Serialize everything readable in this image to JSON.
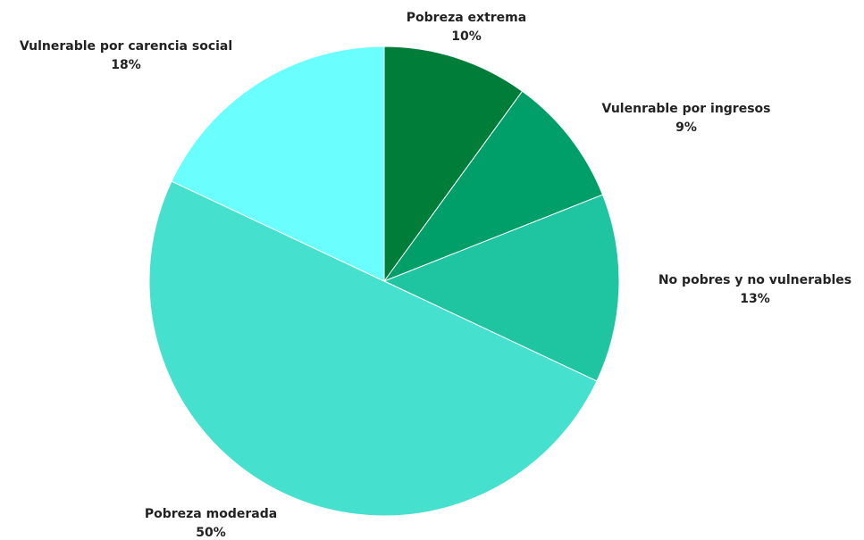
{
  "chart_data": {
    "type": "pie",
    "slices": [
      {
        "label": "Pobreza extrema",
        "value": 10,
        "value_label": "10%",
        "color": "#007E39"
      },
      {
        "label": "Vulenrable por ingresos",
        "value": 9,
        "value_label": "9%",
        "color": "#009E68"
      },
      {
        "label": "No pobres y no vulnerables",
        "value": 13,
        "value_label": "13%",
        "color": "#1FC4A0"
      },
      {
        "label": "Pobreza moderada",
        "value": 50,
        "value_label": "50%",
        "color": "#45E1CE"
      },
      {
        "label": "Vulnerable por carencia social",
        "value": 18,
        "value_label": "18%",
        "color": "#6BFEFF"
      }
    ],
    "start_angle": "12 o'clock",
    "direction": "clockwise",
    "legend": "none (labels outside slices)"
  }
}
